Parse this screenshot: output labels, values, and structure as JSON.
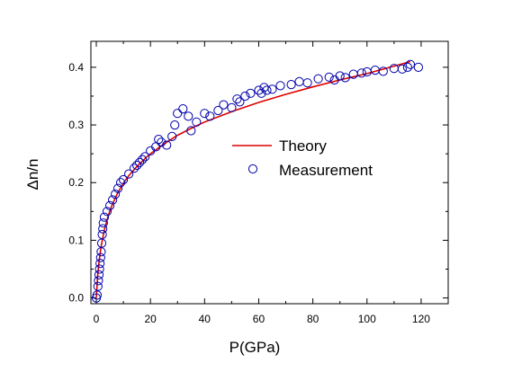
{
  "chart_data": {
    "type": "scatter",
    "xlabel": "P(GPa)",
    "ylabel": "Δn/n",
    "xlim": [
      -2,
      130
    ],
    "ylim": [
      -0.01,
      0.445
    ],
    "xticks": [
      0,
      20,
      40,
      60,
      80,
      100,
      120
    ],
    "xtick_labels": [
      "0",
      "20",
      "40",
      "60",
      "80",
      "100",
      "120"
    ],
    "yticks": [
      0.0,
      0.1,
      0.2,
      0.3,
      0.4
    ],
    "ytick_labels": [
      "0.0",
      "0.1",
      "0.2",
      "0.3",
      "0.4"
    ],
    "grid": false,
    "legend_position": "right-center",
    "series": [
      {
        "name": "Theory",
        "kind": "line",
        "color": "#dd0000",
        "x": [
          0,
          0.5,
          1,
          1.5,
          2,
          3,
          4,
          5,
          6,
          8,
          10,
          12,
          15,
          18,
          20,
          25,
          30,
          35,
          40,
          50,
          60,
          70,
          80,
          90,
          100,
          110,
          116
        ],
        "y": [
          0.0,
          0.038,
          0.062,
          0.08,
          0.095,
          0.118,
          0.136,
          0.151,
          0.163,
          0.183,
          0.199,
          0.212,
          0.228,
          0.242,
          0.25,
          0.267,
          0.282,
          0.294,
          0.305,
          0.323,
          0.339,
          0.353,
          0.366,
          0.378,
          0.389,
          0.402,
          0.41
        ]
      },
      {
        "name": "Measurement",
        "kind": "scatter",
        "color": "#0000aa",
        "x": [
          0,
          0.3,
          0.6,
          0.8,
          1.0,
          1.2,
          1.4,
          1.6,
          1.8,
          2.0,
          2.2,
          2.4,
          2.6,
          3,
          4,
          5,
          6,
          7,
          8,
          9,
          10,
          12,
          14,
          15,
          16,
          17,
          18,
          20,
          22,
          23,
          24,
          26,
          28,
          29,
          30,
          32,
          34,
          35,
          37,
          40,
          42,
          45,
          47,
          50,
          52,
          53,
          55,
          57,
          60,
          61,
          62,
          63,
          65,
          68,
          72,
          75,
          78,
          82,
          86,
          88,
          90,
          92,
          95,
          98,
          100,
          103,
          106,
          110,
          113,
          115,
          116,
          119
        ],
        "y": [
          0.0,
          0.005,
          0.02,
          0.03,
          0.04,
          0.05,
          0.06,
          0.07,
          0.08,
          0.095,
          0.11,
          0.12,
          0.13,
          0.14,
          0.15,
          0.16,
          0.17,
          0.18,
          0.19,
          0.2,
          0.205,
          0.215,
          0.225,
          0.23,
          0.235,
          0.24,
          0.245,
          0.255,
          0.262,
          0.275,
          0.27,
          0.265,
          0.28,
          0.3,
          0.32,
          0.328,
          0.315,
          0.29,
          0.305,
          0.32,
          0.315,
          0.325,
          0.335,
          0.33,
          0.345,
          0.34,
          0.35,
          0.355,
          0.36,
          0.355,
          0.365,
          0.36,
          0.362,
          0.368,
          0.37,
          0.375,
          0.373,
          0.38,
          0.383,
          0.378,
          0.385,
          0.382,
          0.388,
          0.39,
          0.392,
          0.395,
          0.393,
          0.398,
          0.397,
          0.4,
          0.405,
          0.4
        ]
      }
    ]
  }
}
